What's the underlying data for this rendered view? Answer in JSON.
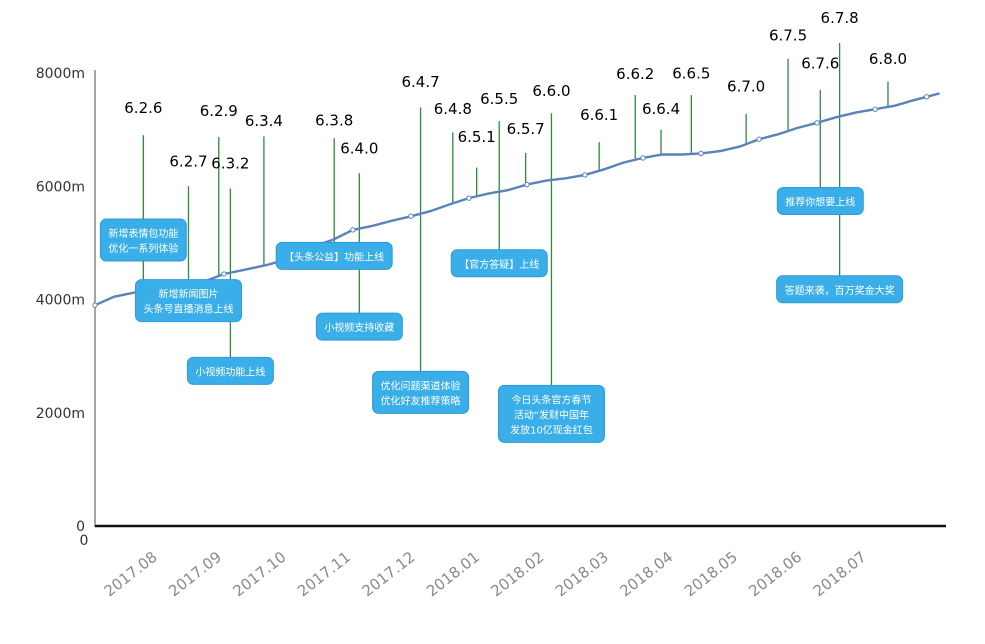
{
  "chart_data": {
    "type": "line",
    "title": "",
    "xlabel": "",
    "ylabel": "",
    "origin_label": "0",
    "ylim": [
      0,
      8000
    ],
    "y_ticks": [
      "0",
      "2000m",
      "4000m",
      "6000m",
      "8000m"
    ],
    "x_ticks": [
      "2017.08",
      "2017.09",
      "2017.10",
      "2017.11",
      "2017.12",
      "2018.01",
      "2018.02",
      "2018.03",
      "2018.04",
      "2018.05",
      "2018.06",
      "2018.07"
    ],
    "grid": false,
    "line_color": "#5b83b8",
    "stem_color": "#2e8b3a",
    "box_color": "#3aaee8",
    "series": [
      {
        "values": [
          [
            0,
            3900
          ],
          [
            0.3,
            4050
          ],
          [
            0.6,
            4120
          ],
          [
            1.0,
            4170
          ],
          [
            1.3,
            4220
          ],
          [
            1.7,
            4320
          ],
          [
            2.0,
            4450
          ],
          [
            2.3,
            4520
          ],
          [
            2.7,
            4620
          ],
          [
            3.0,
            4720
          ],
          [
            3.3,
            4900
          ],
          [
            3.7,
            5060
          ],
          [
            4.0,
            5230
          ],
          [
            4.3,
            5300
          ],
          [
            4.6,
            5390
          ],
          [
            4.9,
            5470
          ],
          [
            5.2,
            5560
          ],
          [
            5.5,
            5680
          ],
          [
            5.8,
            5790
          ],
          [
            6.1,
            5870
          ],
          [
            6.4,
            5930
          ],
          [
            6.7,
            6030
          ],
          [
            7.0,
            6100
          ],
          [
            7.3,
            6140
          ],
          [
            7.6,
            6200
          ],
          [
            7.9,
            6300
          ],
          [
            8.2,
            6420
          ],
          [
            8.5,
            6500
          ],
          [
            8.8,
            6560
          ],
          [
            9.1,
            6560
          ],
          [
            9.4,
            6580
          ],
          [
            9.7,
            6620
          ],
          [
            10.0,
            6700
          ],
          [
            10.3,
            6830
          ],
          [
            10.6,
            6920
          ],
          [
            10.9,
            7030
          ],
          [
            11.2,
            7120
          ],
          [
            11.5,
            7220
          ],
          [
            11.8,
            7300
          ],
          [
            12.1,
            7360
          ],
          [
            12.4,
            7420
          ],
          [
            12.7,
            7520
          ],
          [
            12.9,
            7580
          ],
          [
            13.1,
            7640
          ]
        ]
      }
    ],
    "annotations": [
      {
        "version": "6.2.6",
        "x": 0.75,
        "top": 6900,
        "label_y": 7290,
        "notes": [
          {
            "text": "新增表情包功能\n优化一系列体验",
            "y": 5050
          }
        ]
      },
      {
        "version": "6.2.7",
        "x": 1.45,
        "top": 6000,
        "label_y": 6350,
        "notes": [
          {
            "text": "新增新闻图片\n头条号直播消息上线",
            "y": 3980
          }
        ]
      },
      {
        "version": "6.2.9",
        "x": 1.92,
        "top": 6870,
        "label_y": 7240,
        "notes": []
      },
      {
        "version": "6.3.2",
        "x": 2.1,
        "top": 5960,
        "label_y": 6310,
        "notes": [
          {
            "text": "小视频功能上线",
            "y": 2740
          }
        ]
      },
      {
        "version": "6.3.4",
        "x": 2.62,
        "top": 6880,
        "label_y": 7060,
        "notes": []
      },
      {
        "version": "6.3.8",
        "x": 3.71,
        "top": 6850,
        "label_y": 7070,
        "notes": [
          {
            "text": "【头条公益】功能上线",
            "y": 4770
          }
        ]
      },
      {
        "version": "6.4.0",
        "x": 4.1,
        "top": 6230,
        "label_y": 6580,
        "notes": [
          {
            "text": "小视频支持收藏",
            "y": 3520
          }
        ]
      },
      {
        "version": "6.4.7",
        "x": 5.05,
        "top": 7390,
        "label_y": 7750,
        "notes": [
          {
            "text": "优化问题渠道体验\n优化好友推荐策略",
            "y": 2360
          }
        ]
      },
      {
        "version": "6.4.8",
        "x": 5.55,
        "top": 6950,
        "label_y": 7280,
        "notes": []
      },
      {
        "version": "6.5.1",
        "x": 5.92,
        "top": 6330,
        "label_y": 6780,
        "notes": []
      },
      {
        "version": "6.5.5",
        "x": 6.27,
        "top": 7150,
        "label_y": 7450,
        "notes": [
          {
            "text": "【官方答疑】上线",
            "y": 4640
          }
        ]
      },
      {
        "version": "6.5.7",
        "x": 6.68,
        "top": 6590,
        "label_y": 6920,
        "notes": []
      },
      {
        "version": "6.6.0",
        "x": 7.08,
        "top": 7290,
        "label_y": 7590,
        "notes": [
          {
            "text": "今日头条官方春节\n活动“发财中国年\n发放10亿现金红包",
            "y": 1980
          }
        ]
      },
      {
        "version": "6.6.1",
        "x": 7.82,
        "top": 6780,
        "label_y": 7170,
        "notes": []
      },
      {
        "version": "6.6.2",
        "x": 8.38,
        "top": 7610,
        "label_y": 7890,
        "notes": []
      },
      {
        "version": "6.6.4",
        "x": 8.78,
        "top": 7000,
        "label_y": 7280,
        "notes": []
      },
      {
        "version": "6.6.5",
        "x": 9.25,
        "top": 7610,
        "label_y": 7900,
        "notes": []
      },
      {
        "version": "6.7.0",
        "x": 10.1,
        "top": 7280,
        "label_y": 7670,
        "notes": []
      },
      {
        "version": "6.7.5",
        "x": 10.75,
        "top": 8250,
        "label_y": 8570,
        "notes": []
      },
      {
        "version": "6.7.6",
        "x": 11.25,
        "top": 7700,
        "label_y": 8080,
        "notes": [
          {
            "text": "推荐你想要上线",
            "y": 5740
          }
        ]
      },
      {
        "version": "6.7.8",
        "x": 11.55,
        "top": 8530,
        "label_y": 8880,
        "notes": [
          {
            "text": "答题来袭，百万奖金大奖",
            "y": 4180
          }
        ]
      },
      {
        "version": "6.8.0",
        "x": 12.3,
        "top": 7850,
        "label_y": 8160,
        "notes": []
      }
    ]
  }
}
